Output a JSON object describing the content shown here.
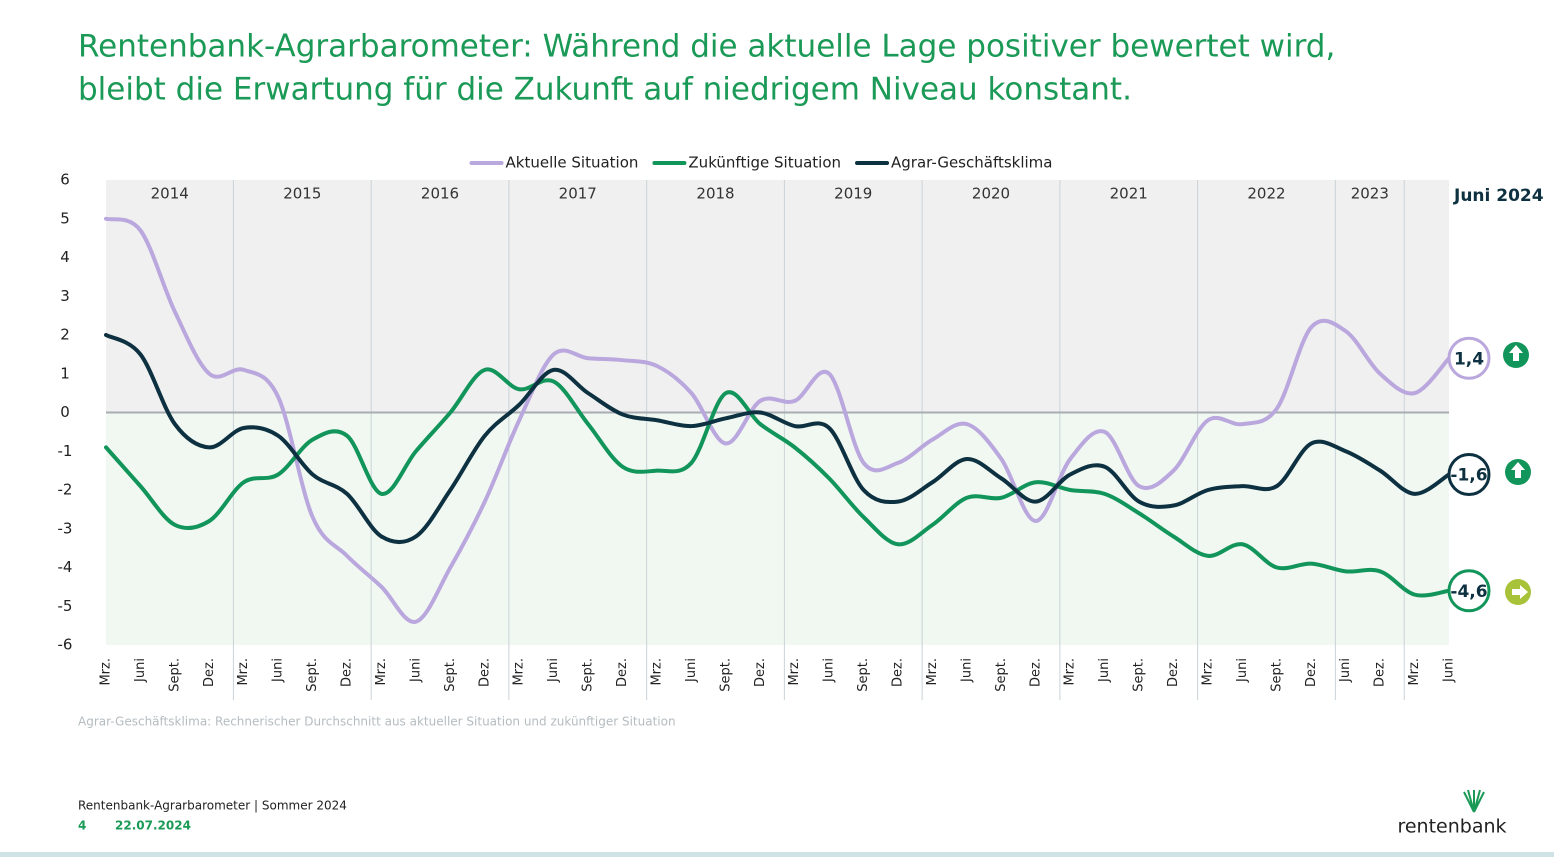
{
  "chart_data": {
    "type": "line",
    "title": [
      "Rentenbank-Agrarbarometer: Während die aktuelle Lage positiver bewertet wird,",
      "bleibt die Erwartung für die Zukunft auf niedrigem Niveau konstant."
    ],
    "period_label": "Juni 2024",
    "footnote": "Agrar-Geschäftsklima: Rechnerischer Durchschnitt aus aktueller Situation und zukünftiger Situation",
    "groups": [
      {
        "label": "2014",
        "categories": [
          "Mrz.",
          "Juni",
          "Sept.",
          "Dez."
        ]
      },
      {
        "label": "2015",
        "categories": [
          "Mrz.",
          "Juni",
          "Sept.",
          "Dez."
        ]
      },
      {
        "label": "2016",
        "categories": [
          "Mrz.",
          "Juni",
          "Sept.",
          "Dez."
        ]
      },
      {
        "label": "2017",
        "categories": [
          "Mrz.",
          "Juni",
          "Sept.",
          "Dez."
        ]
      },
      {
        "label": "2018",
        "categories": [
          "Mrz.",
          "Juni",
          "Sept.",
          "Dez."
        ]
      },
      {
        "label": "2019",
        "categories": [
          "Mrz.",
          "Juni",
          "Sept.",
          "Dez."
        ]
      },
      {
        "label": "2020",
        "categories": [
          "Mrz.",
          "Juni",
          "Sept.",
          "Dez."
        ]
      },
      {
        "label": "2021",
        "categories": [
          "Mrz.",
          "Juni",
          "Sept.",
          "Dez."
        ]
      },
      {
        "label": "2022",
        "categories": [
          "Mrz.",
          "Juni",
          "Sept.",
          "Dez."
        ]
      },
      {
        "label": "2023",
        "categories": [
          "Juni",
          "Dez."
        ]
      },
      {
        "label": null,
        "categories": [
          "Mrz.",
          "Juni"
        ]
      }
    ],
    "series": [
      {
        "name": "Aktuelle Situation",
        "color": "#b9a7dd",
        "values": [
          5.0,
          4.7,
          2.6,
          1.0,
          1.1,
          0.4,
          -2.7,
          -3.7,
          -4.5,
          -5.4,
          -4.0,
          -2.3,
          -0.2,
          1.5,
          1.4,
          1.35,
          1.2,
          0.5,
          -0.8,
          0.3,
          0.3,
          1.0,
          -1.3,
          -1.3,
          -0.7,
          -0.3,
          -1.2,
          -2.8,
          -1.2,
          -0.5,
          -1.9,
          -1.5,
          -0.2,
          -0.3,
          0.1,
          2.2,
          2.1,
          1.0,
          0.5,
          1.4
        ],
        "value_labels": [
          null,
          null,
          null,
          null,
          null,
          null,
          null,
          null,
          null,
          null,
          null,
          null,
          null,
          null,
          null,
          null,
          null,
          null,
          null,
          null,
          null,
          null,
          null,
          null,
          null,
          null,
          null,
          null,
          null,
          null,
          null,
          null,
          null,
          null,
          null,
          null,
          null,
          null,
          null,
          "1,4"
        ]
      },
      {
        "name": "Zukünftige Situation",
        "color": "#12955a",
        "values": [
          -0.9,
          -1.9,
          -2.9,
          -2.8,
          -1.8,
          -1.6,
          -0.7,
          -0.6,
          -2.1,
          -1.0,
          0.0,
          1.1,
          0.6,
          0.8,
          -0.3,
          -1.4,
          -1.5,
          -1.3,
          0.5,
          -0.3,
          -0.9,
          -1.7,
          -2.7,
          -3.4,
          -2.9,
          -2.2,
          -2.2,
          -1.8,
          -2.0,
          -2.1,
          -2.6,
          -3.2,
          -3.7,
          -3.4,
          -4.0,
          -3.9,
          -4.1,
          -4.1,
          -4.7,
          -4.6
        ],
        "value_labels": [
          null,
          null,
          null,
          null,
          null,
          null,
          null,
          null,
          null,
          null,
          null,
          null,
          null,
          null,
          null,
          null,
          null,
          null,
          null,
          null,
          null,
          null,
          null,
          null,
          null,
          null,
          null,
          null,
          null,
          null,
          null,
          null,
          null,
          null,
          null,
          null,
          null,
          null,
          null,
          "-4,6"
        ]
      },
      {
        "name": "Agrar-Geschäftsklima",
        "color": "#0d3140",
        "values": [
          2.0,
          1.5,
          -0.3,
          -0.9,
          -0.4,
          -0.6,
          -1.6,
          -2.1,
          -3.2,
          -3.2,
          -2.0,
          -0.6,
          0.2,
          1.1,
          0.5,
          -0.05,
          -0.2,
          -0.35,
          -0.15,
          0.0,
          -0.35,
          -0.4,
          -2.0,
          -2.3,
          -1.8,
          -1.2,
          -1.7,
          -2.3,
          -1.6,
          -1.4,
          -2.3,
          -2.4,
          -2.0,
          -1.9,
          -1.9,
          -0.8,
          -1.0,
          -1.5,
          -2.1,
          -1.6
        ],
        "value_labels": [
          null,
          null,
          null,
          null,
          null,
          null,
          null,
          null,
          null,
          null,
          null,
          null,
          null,
          null,
          null,
          null,
          null,
          null,
          null,
          null,
          null,
          null,
          null,
          null,
          null,
          null,
          null,
          null,
          null,
          null,
          null,
          null,
          null,
          null,
          null,
          null,
          null,
          null,
          null,
          "-1,6"
        ]
      }
    ],
    "ylim": [
      -6,
      6
    ],
    "yticks": [
      -6,
      -5,
      -4,
      -3,
      -2,
      -1,
      0,
      1,
      2,
      3,
      4,
      5,
      6
    ],
    "footer": {
      "source": "Rentenbank-Agrarbarometer | Sommer  2024",
      "page": "4",
      "date": "22.07.2024",
      "logo": "rentenbank"
    }
  }
}
